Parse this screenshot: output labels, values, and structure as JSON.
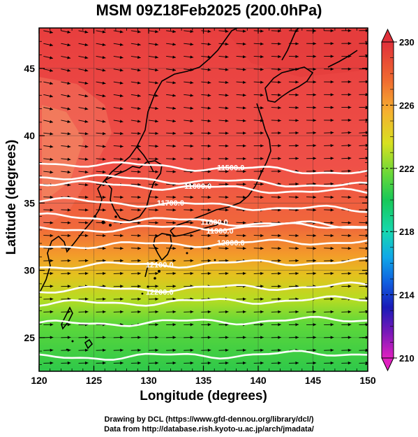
{
  "title": "MSM 09Z18Feb2025 (200.0hPa)",
  "xlabel": "Longitude (degrees)",
  "ylabel": "Latitude  (degrees)",
  "x_ticks": [
    "120",
    "125",
    "130",
    "135",
    "140",
    "145",
    "150"
  ],
  "y_ticks": [
    "25",
    "30",
    "35",
    "40",
    "45"
  ],
  "colorbar": {
    "ticks": [
      "230",
      "226",
      "222",
      "218",
      "214",
      "210"
    ],
    "min": 210,
    "max": 230
  },
  "contour_labels": [
    "11500.0",
    "11600.0",
    "11700.0",
    "11800.0",
    "11900.0",
    "12000.0",
    "12100.0",
    "12200.0"
  ],
  "credits": {
    "line1": "Drawing by DCL (https://www.gfd-dennou.org/library/dcl/)",
    "line2": "Data from http://database.rish.kyoto-u.ac.jp/arch/jmadata/"
  },
  "chart_data": {
    "type": "heatmap",
    "variable": "temperature with wind vectors and geopotential height contours",
    "xlim": [
      120,
      150
    ],
    "ylim": [
      22.5,
      48
    ],
    "color_range": [
      210,
      230
    ],
    "shaded_field_by_latitude": [
      {
        "lat": 47,
        "value": 229.5
      },
      {
        "lat": 43,
        "value": 229.3
      },
      {
        "lat": 39,
        "value": 229.0
      },
      {
        "lat": 36,
        "value": 228.8
      },
      {
        "lat": 33,
        "value": 228.0
      },
      {
        "lat": 31,
        "value": 226.8
      },
      {
        "lat": 29,
        "value": 225.2
      },
      {
        "lat": 27,
        "value": 223.2
      },
      {
        "lat": 25,
        "value": 222.3
      },
      {
        "lat": 23,
        "value": 222.0
      }
    ],
    "height_contours": [
      {
        "value": "11500.0",
        "lat": 38.0
      },
      {
        "lat": 37.0
      },
      {
        "value": "11600.0",
        "lat": 36.5
      },
      {
        "value": "11700.0",
        "lat": 35.2
      },
      {
        "value": "11800.0",
        "lat": 34.0
      },
      {
        "value": "11900.0",
        "lat": 33.0
      },
      {
        "value": "12000.0",
        "lat": 31.8
      },
      {
        "value": "12100.0",
        "lat": 30.3
      },
      {
        "value": "12200.0",
        "lat": 28.5
      },
      {
        "lat": 27.5
      },
      {
        "lat": 26.0
      },
      {
        "lat": 23.5
      }
    ],
    "wind_direction": "westerly"
  }
}
